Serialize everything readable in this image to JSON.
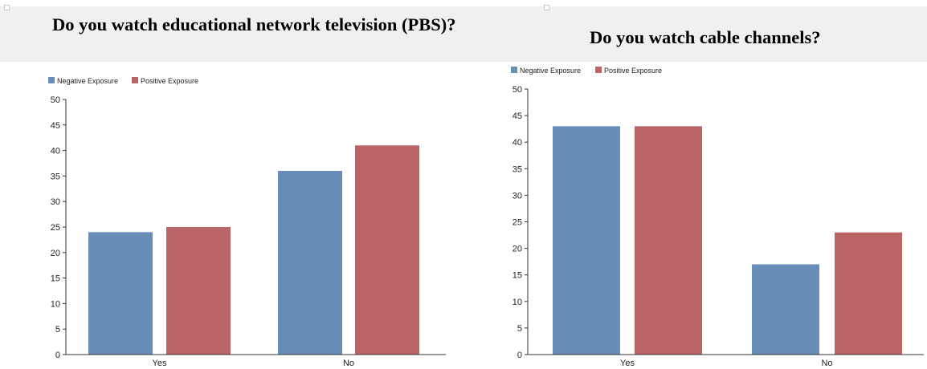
{
  "panels": [
    {
      "title": "Do you watch educational network television (PBS)?",
      "chart_data": {
        "type": "bar",
        "categories": [
          "Yes",
          "No"
        ],
        "series": [
          {
            "name": "Negative Exposure",
            "values": [
              24,
              36
            ],
            "color": "#688db8"
          },
          {
            "name": "Positive Exposure",
            "values": [
              25,
              41
            ],
            "color": "#b96565"
          }
        ],
        "ylim": [
          0,
          50
        ],
        "yticks": [
          0,
          5,
          10,
          15,
          20,
          25,
          30,
          35,
          40,
          45,
          50
        ],
        "xlabel": "",
        "ylabel": "",
        "legend": "top-left",
        "grid": false
      }
    },
    {
      "title": "Do you watch cable channels?",
      "chart_data": {
        "type": "bar",
        "categories": [
          "Yes",
          "No"
        ],
        "series": [
          {
            "name": "Negative Exposure",
            "values": [
              43,
              17
            ],
            "color": "#688db8"
          },
          {
            "name": "Positive Exposure",
            "values": [
              43,
              23
            ],
            "color": "#b96565"
          }
        ],
        "ylim": [
          0,
          50
        ],
        "yticks": [
          0,
          5,
          10,
          15,
          20,
          25,
          30,
          35,
          40,
          45,
          50
        ],
        "xlabel": "",
        "ylabel": "",
        "legend": "top-left",
        "grid": false
      }
    }
  ]
}
